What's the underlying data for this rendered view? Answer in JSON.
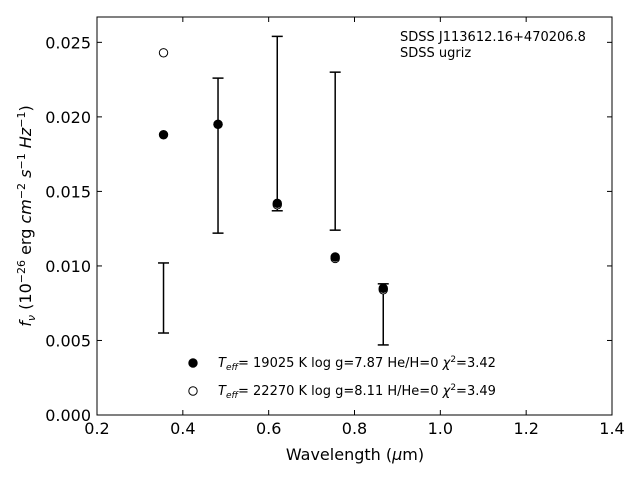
{
  "chart_data": {
    "type": "scatter",
    "title": "",
    "xlabel": "Wavelength (μm)",
    "ylabel": "fν (10⁻²⁶ erg cm⁻² s⁻¹ Hz⁻¹)",
    "xlim": [
      0.2,
      1.4
    ],
    "ylim": [
      0.0,
      0.0267
    ],
    "xticks": [
      "0.2",
      "0.4",
      "0.6",
      "0.8",
      "1.0",
      "1.2",
      "1.4"
    ],
    "yticks": [
      "0.000",
      "0.005",
      "0.010",
      "0.015",
      "0.020",
      "0.025"
    ],
    "grid": false,
    "legend_position": "bottom-center",
    "annotation": [
      "SDSS J113612.16+470206.8",
      "SDSS ugriz"
    ],
    "observed": {
      "name": "SDSS ugriz",
      "points": [
        {
          "x": 0.355,
          "low": 0.0055,
          "high": 0.0102
        },
        {
          "x": 0.482,
          "low": 0.0122,
          "high": 0.0226
        },
        {
          "x": 0.62,
          "low": 0.0137,
          "high": 0.0254
        },
        {
          "x": 0.755,
          "low": 0.0124,
          "high": 0.023
        },
        {
          "x": 0.867,
          "low": 0.0047,
          "high": 0.0088
        }
      ]
    },
    "series": [
      {
        "name": "Teff= 19025 K  log g=7.87  He/H=0  χ²=3.42",
        "marker": "filled",
        "points": [
          {
            "x": 0.355,
            "y": 0.0188
          },
          {
            "x": 0.482,
            "y": 0.0195
          },
          {
            "x": 0.62,
            "y": 0.0142
          },
          {
            "x": 0.755,
            "y": 0.0106
          },
          {
            "x": 0.867,
            "y": 0.0085
          }
        ]
      },
      {
        "name": "Teff= 22270 K  log g=8.11  H/He=0  χ²=3.49",
        "marker": "open",
        "points": [
          {
            "x": 0.355,
            "y": 0.0243
          },
          {
            "x": 0.482,
            "y": 0.0195
          },
          {
            "x": 0.62,
            "y": 0.0141
          },
          {
            "x": 0.755,
            "y": 0.0105
          },
          {
            "x": 0.867,
            "y": 0.0084
          }
        ]
      }
    ],
    "legend": [
      {
        "teff": "19025",
        "logg": "7.87",
        "comp": "He/H=0",
        "chi2": "3.42"
      },
      {
        "teff": "22270",
        "logg": "8.11",
        "comp": "H/He=0",
        "chi2": "3.49"
      }
    ]
  }
}
